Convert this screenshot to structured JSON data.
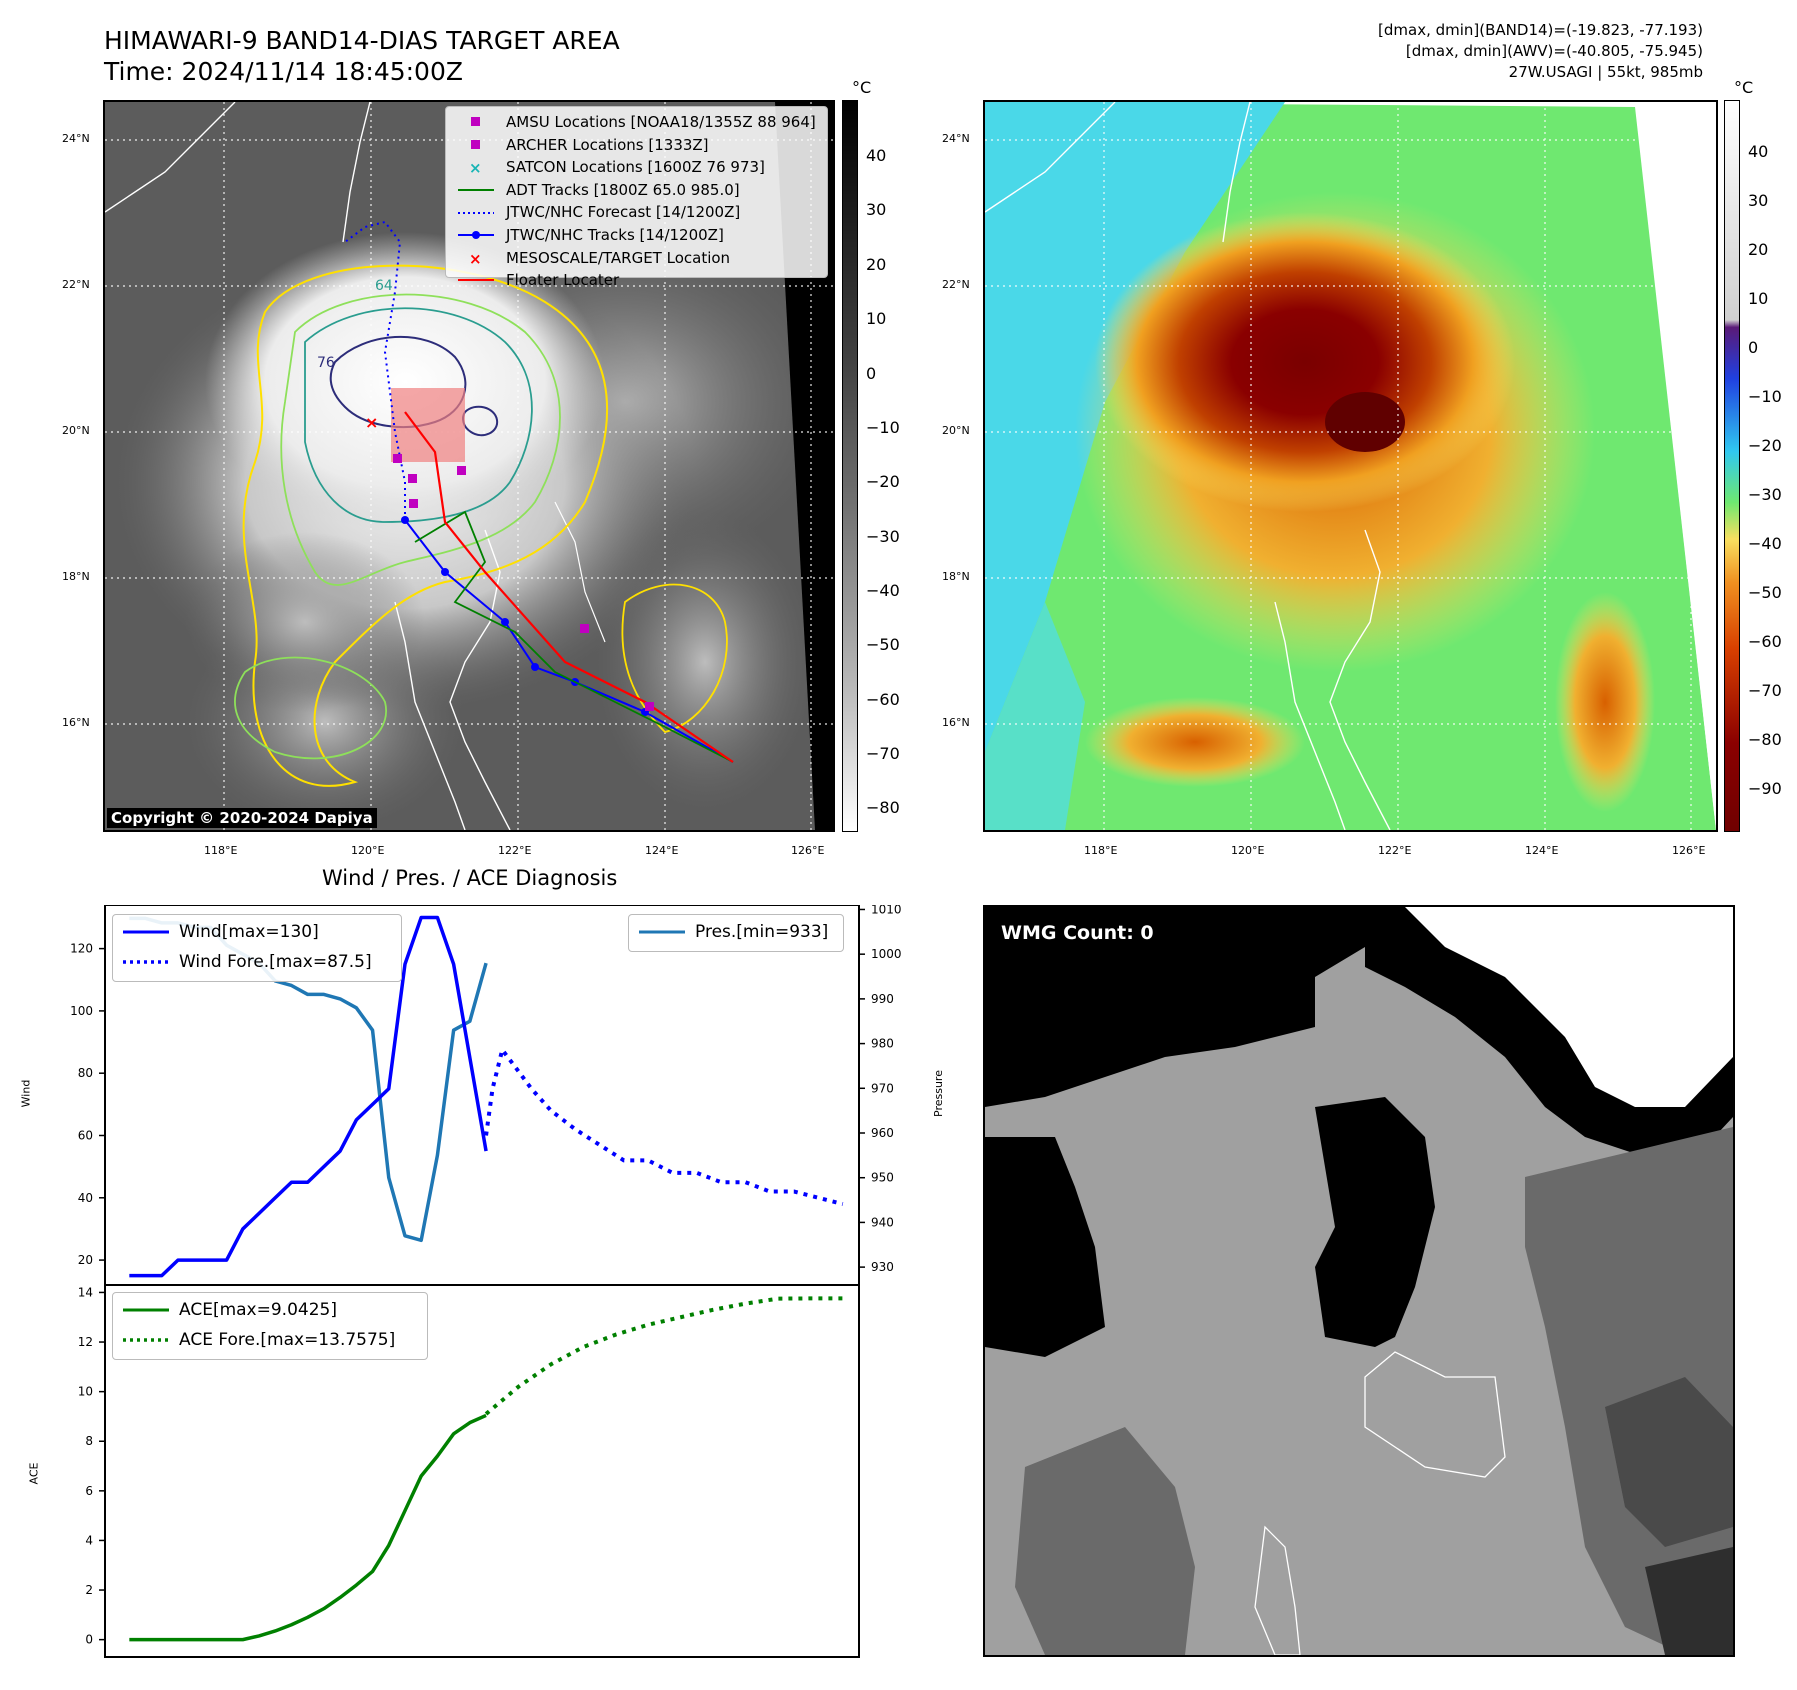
{
  "header": {
    "title_line1": "HIMAWARI-9 BAND14-DIAS TARGET AREA",
    "title_line2": "Time: 2024/11/14 18:45:00Z",
    "info_line1": "[dmax, dmin](BAND14)=(-19.823, -77.193)",
    "info_line2": "[dmax, dmin](AWV)=(-40.805, -75.945)",
    "info_line3": "27W.USAGI | 55kt, 985mb"
  },
  "map_axes": {
    "lat_labels": [
      "24°N",
      "22°N",
      "20°N",
      "18°N",
      "16°N"
    ],
    "lon_labels": [
      "118°E",
      "120°E",
      "122°E",
      "124°E",
      "126°E"
    ]
  },
  "ir_panel": {
    "legend": [
      {
        "label": "AMSU Locations [NOAA18/1355Z 88 964]",
        "symbol": "square",
        "color": "#c000c0"
      },
      {
        "label": "ARCHER Locations [1333Z]",
        "symbol": "square",
        "color": "#c000c0"
      },
      {
        "label": "SATCON Locations [1600Z 76 973]",
        "symbol": "x",
        "color": "#19b5b5"
      },
      {
        "label": "ADT Tracks [1800Z 65.0 985.0]",
        "symbol": "line",
        "color": "#008000"
      },
      {
        "label": "JTWC/NHC Forecast [14/1200Z]",
        "symbol": "dotted",
        "color": "#0000ff"
      },
      {
        "label": "JTWC/NHC Tracks [14/1200Z]",
        "symbol": "line-dot",
        "color": "#0000ff"
      },
      {
        "label": "MESOSCALE/TARGET Location",
        "symbol": "x",
        "color": "#ff0000"
      },
      {
        "label": "Floater Locater",
        "symbol": "line",
        "color": "#ff0000"
      }
    ],
    "contour_labels": [
      "64",
      "76"
    ],
    "copyright": "Copyright © 2020-2024 Dapiya",
    "colorbar": {
      "unit": "°C",
      "ticks": [
        "40",
        "30",
        "20",
        "10",
        "0",
        "−10",
        "−20",
        "−30",
        "−40",
        "−50",
        "−60",
        "−70",
        "−80"
      ]
    }
  },
  "awv_panel": {
    "colorbar": {
      "unit": "°C",
      "ticks": [
        "40",
        "30",
        "20",
        "10",
        "0",
        "−10",
        "−20",
        "−30",
        "−40",
        "−50",
        "−60",
        "−70",
        "−80",
        "−90"
      ]
    }
  },
  "diag_title": "Wind / Pres. / ACE Diagnosis",
  "wmg_label": "WMG Count: 0",
  "chart_data": [
    {
      "type": "line",
      "title": "Wind / Pres. / ACE Diagnosis",
      "ylabel": "Wind",
      "y2label": "Pressure",
      "ylim": [
        12,
        134
      ],
      "y2lim": [
        926,
        1011
      ],
      "yticks": [
        20,
        40,
        60,
        80,
        100,
        120
      ],
      "y2ticks": [
        930,
        940,
        950,
        960,
        970,
        980,
        990,
        1000,
        1010
      ],
      "legend_left": [
        {
          "label": "Wind[max=130]",
          "color": "#0000ff",
          "style": "solid"
        },
        {
          "label": "Wind Fore.[max=87.5]",
          "color": "#0000ff",
          "style": "dotted"
        }
      ],
      "legend_right": [
        {
          "label": "Pres.[min=933]",
          "color": "#1f77b4",
          "style": "solid"
        }
      ],
      "series": [
        {
          "name": "Wind[max=130]",
          "x": [
            0,
            1,
            2,
            3,
            4,
            5,
            6,
            7,
            8,
            9,
            10,
            11,
            12,
            13,
            14,
            15,
            16,
            17,
            18,
            19,
            20,
            21,
            22
          ],
          "values": [
            15,
            15,
            15,
            20,
            20,
            20,
            20,
            30,
            35,
            40,
            45,
            45,
            50,
            55,
            65,
            70,
            75,
            115,
            130,
            130,
            115,
            85,
            55
          ]
        },
        {
          "name": "Wind Fore.[max=87.5]",
          "x": [
            22,
            22.4,
            23,
            23.8,
            24.8,
            26,
            27.5,
            29,
            30.5,
            32,
            33.5,
            35,
            36.5,
            38,
            39.5,
            41,
            42.5,
            44
          ],
          "values": [
            60,
            75,
            87.5,
            82,
            75,
            68,
            62,
            57,
            52,
            52,
            48,
            48,
            45,
            45,
            42,
            42,
            40,
            38
          ]
        },
        {
          "name": "Pres.[min=933]",
          "x": [
            0,
            1,
            2,
            3,
            4,
            5,
            6,
            7,
            8,
            9,
            10,
            11,
            12,
            13,
            14,
            15,
            16,
            17,
            18,
            19,
            20,
            21,
            22
          ],
          "values": [
            1008,
            1008,
            1007,
            1007,
            1006,
            1006,
            1002,
            1000,
            998,
            994,
            993,
            991,
            991,
            990,
            988,
            983,
            950,
            937,
            936,
            955,
            983,
            985,
            998
          ]
        }
      ]
    },
    {
      "type": "line",
      "ylabel": "ACE",
      "ylim": [
        -0.7,
        14.3
      ],
      "yticks": [
        0,
        2,
        4,
        6,
        8,
        10,
        12,
        14
      ],
      "legend": [
        {
          "label": "ACE[max=9.0425]",
          "color": "#008000",
          "style": "solid"
        },
        {
          "label": "ACE Fore.[max=13.7575]",
          "color": "#008000",
          "style": "dotted"
        }
      ],
      "series": [
        {
          "name": "ACE[max=9.0425]",
          "x": [
            0,
            1,
            2,
            3,
            4,
            5,
            6,
            7,
            8,
            9,
            10,
            11,
            12,
            13,
            14,
            15,
            16,
            17,
            18,
            19,
            20,
            21,
            22
          ],
          "values": [
            0,
            0,
            0,
            0,
            0,
            0,
            0,
            0,
            0.15,
            0.35,
            0.6,
            0.9,
            1.25,
            1.7,
            2.2,
            2.75,
            3.8,
            5.2,
            6.6,
            7.4,
            8.3,
            8.75,
            9.04
          ]
        },
        {
          "name": "ACE Fore.[max=13.7575]",
          "x": [
            22,
            24,
            26,
            28,
            30,
            32,
            34,
            36,
            38,
            40,
            42,
            44
          ],
          "values": [
            9.1,
            10.2,
            11.1,
            11.8,
            12.3,
            12.7,
            13.0,
            13.3,
            13.55,
            13.75,
            13.76,
            13.76
          ]
        }
      ]
    }
  ]
}
